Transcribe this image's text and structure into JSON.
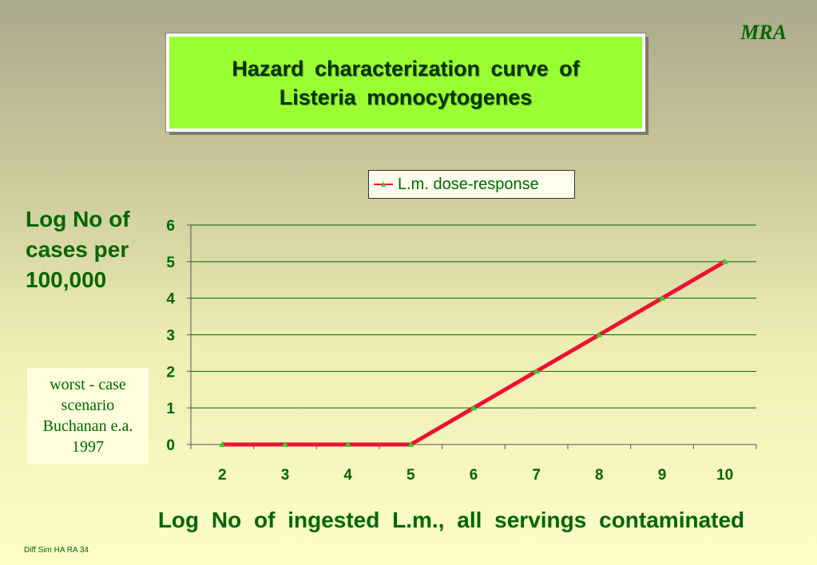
{
  "brand": "MRA",
  "title": "Hazard characterization curve of Listeria monocytogenes",
  "ylabel": "Log No of cases per 100,000",
  "note": {
    "lines": [
      "worst - case",
      "scenario",
      "Buchanan e.a.",
      "1997"
    ]
  },
  "xlabel": "Log No of ingested L.m., all servings contaminated",
  "footer": "Diff Sim HA RA 34",
  "colors": {
    "line": "#ee1133",
    "marker": "#33cc33",
    "axis_text": "#006600",
    "gridline": "#006600"
  },
  "chart_data": {
    "type": "line",
    "title": "Hazard characterization curve of Listeria monocytogenes",
    "xlabel": "Log No of ingested L.m., all servings contaminated",
    "ylabel": "Log No of cases per 100,000",
    "categories": [
      "2",
      "3",
      "4",
      "5",
      "6",
      "7",
      "8",
      "9",
      "10"
    ],
    "series": [
      {
        "name": "L.m. dose-response",
        "values": [
          0,
          0,
          0,
          0,
          1,
          2,
          3,
          4,
          5
        ]
      }
    ],
    "ylim": [
      0,
      6
    ],
    "yticks": [
      0,
      1,
      2,
      3,
      4,
      5,
      6
    ],
    "grid": true,
    "legend_position": "top-right"
  }
}
